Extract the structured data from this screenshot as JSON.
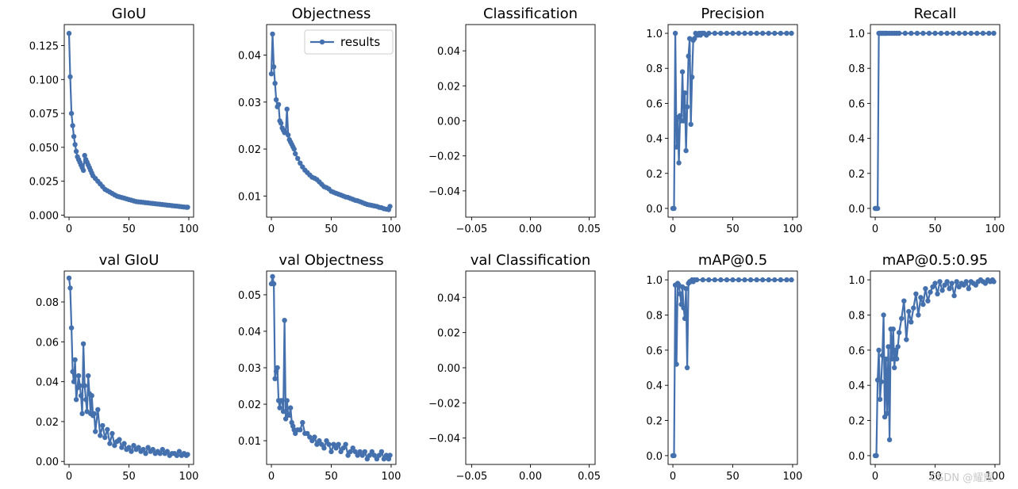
{
  "legend_label": "results",
  "watermark": "CSDN @耀耀",
  "series_color": "#4470ad",
  "chart_data": [
    {
      "type": "line",
      "title": "GIoU",
      "xlim": [
        -4,
        104
      ],
      "ylim": [
        -0.0015,
        0.1405
      ],
      "yticks": [
        "0.000",
        "0.025",
        "0.050",
        "0.075",
        "0.100",
        "0.125"
      ],
      "ytick_values": [
        0,
        0.025,
        0.05,
        0.075,
        0.1,
        0.125
      ],
      "xticks": [
        "0",
        "50",
        "100"
      ],
      "xtick_values": [
        0,
        50,
        100
      ],
      "x": [
        0,
        1,
        2,
        3,
        4,
        5,
        6,
        7,
        8,
        9,
        10,
        11,
        12,
        13,
        14,
        15,
        16,
        17,
        18,
        19,
        20,
        22,
        24,
        26,
        28,
        30,
        32,
        34,
        36,
        38,
        40,
        42,
        44,
        46,
        48,
        50,
        52,
        54,
        56,
        58,
        60,
        62,
        64,
        66,
        68,
        70,
        72,
        74,
        76,
        78,
        80,
        82,
        84,
        86,
        88,
        90,
        92,
        94,
        96,
        98,
        99
      ],
      "values": [
        0.134,
        0.102,
        0.075,
        0.066,
        0.058,
        0.052,
        0.047,
        0.043,
        0.041,
        0.039,
        0.037,
        0.035,
        0.033,
        0.044,
        0.041,
        0.039,
        0.037,
        0.035,
        0.033,
        0.031,
        0.029,
        0.027,
        0.025,
        0.023,
        0.021,
        0.019,
        0.018,
        0.017,
        0.016,
        0.015,
        0.014,
        0.0135,
        0.013,
        0.0125,
        0.012,
        0.0115,
        0.011,
        0.0105,
        0.01,
        0.0098,
        0.0096,
        0.0094,
        0.0092,
        0.009,
        0.0088,
        0.0086,
        0.0084,
        0.0082,
        0.008,
        0.0078,
        0.0076,
        0.0074,
        0.0072,
        0.007,
        0.0068,
        0.0066,
        0.0064,
        0.0062,
        0.006,
        0.0058,
        0.0058
      ]
    },
    {
      "type": "line",
      "title": "Objectness",
      "legend": true,
      "xlim": [
        -4,
        104
      ],
      "ylim": [
        0.0055,
        0.0465
      ],
      "yticks": [
        "0.01",
        "0.02",
        "0.03",
        "0.04"
      ],
      "ytick_values": [
        0.01,
        0.02,
        0.03,
        0.04
      ],
      "xticks": [
        "0",
        "50",
        "100"
      ],
      "xtick_values": [
        0,
        50,
        100
      ],
      "x": [
        0,
        1,
        2,
        3,
        4,
        5,
        6,
        7,
        8,
        9,
        10,
        11,
        12,
        13,
        14,
        15,
        16,
        17,
        18,
        19,
        20,
        22,
        24,
        26,
        28,
        30,
        32,
        34,
        36,
        38,
        40,
        42,
        44,
        46,
        48,
        50,
        52,
        54,
        56,
        58,
        60,
        62,
        64,
        66,
        68,
        70,
        72,
        74,
        76,
        78,
        80,
        82,
        84,
        86,
        88,
        90,
        92,
        94,
        96,
        98,
        99
      ],
      "values": [
        0.036,
        0.0445,
        0.0375,
        0.034,
        0.0305,
        0.029,
        0.0295,
        0.026,
        0.0255,
        0.0245,
        0.024,
        0.0235,
        0.0235,
        0.0285,
        0.023,
        0.022,
        0.0215,
        0.021,
        0.0205,
        0.02,
        0.019,
        0.018,
        0.017,
        0.0162,
        0.0155,
        0.015,
        0.0145,
        0.014,
        0.0138,
        0.0135,
        0.013,
        0.0125,
        0.012,
        0.0118,
        0.0115,
        0.011,
        0.0108,
        0.0106,
        0.0104,
        0.0102,
        0.01,
        0.0098,
        0.0097,
        0.0095,
        0.0093,
        0.0091,
        0.009,
        0.0088,
        0.0086,
        0.0084,
        0.0082,
        0.0081,
        0.008,
        0.0079,
        0.0078,
        0.0076,
        0.0075,
        0.0073,
        0.0072,
        0.0071,
        0.0078
      ]
    },
    {
      "type": "line",
      "title": "Classification",
      "empty": true,
      "xlim": [
        -0.055,
        0.055
      ],
      "ylim": [
        -0.055,
        0.055
      ],
      "yticks": [
        "−0.04",
        "−0.02",
        "0.00",
        "0.02",
        "0.04"
      ],
      "ytick_values": [
        -0.04,
        -0.02,
        0,
        0.02,
        0.04
      ],
      "xticks": [
        "−0.05",
        "0.00",
        "0.05"
      ],
      "xtick_values": [
        -0.05,
        0,
        0.05
      ],
      "x": [],
      "values": []
    },
    {
      "type": "line",
      "title": "Precision",
      "xlim": [
        -4,
        104
      ],
      "ylim": [
        -0.05,
        1.05
      ],
      "yticks": [
        "0.0",
        "0.2",
        "0.4",
        "0.6",
        "0.8",
        "1.0"
      ],
      "ytick_values": [
        0,
        0.2,
        0.4,
        0.6,
        0.8,
        1.0
      ],
      "xticks": [
        "0",
        "50",
        "100"
      ],
      "xtick_values": [
        0,
        50,
        100
      ],
      "x": [
        0,
        1,
        2,
        3,
        4,
        5,
        6,
        7,
        8,
        9,
        10,
        11,
        12,
        13,
        14,
        15,
        16,
        17,
        18,
        19,
        20,
        21,
        22,
        23,
        24,
        25,
        26,
        28,
        30,
        35,
        40,
        45,
        50,
        55,
        60,
        65,
        70,
        75,
        80,
        85,
        90,
        95,
        99
      ],
      "values": [
        0.0,
        0.0,
        1.0,
        0.35,
        0.52,
        0.26,
        0.53,
        0.5,
        0.78,
        0.5,
        0.66,
        0.33,
        0.58,
        0.87,
        0.97,
        0.48,
        0.75,
        0.96,
        0.97,
        1.0,
        0.99,
        0.99,
        1.0,
        0.99,
        1.0,
        1.0,
        1.0,
        0.99,
        1.0,
        1.0,
        1.0,
        1.0,
        1.0,
        1.0,
        1.0,
        1.0,
        1.0,
        1.0,
        1.0,
        1.0,
        1.0,
        1.0,
        1.0
      ]
    },
    {
      "type": "line",
      "title": "Recall",
      "xlim": [
        -4,
        104
      ],
      "ylim": [
        -0.05,
        1.05
      ],
      "yticks": [
        "0.0",
        "0.2",
        "0.4",
        "0.6",
        "0.8",
        "1.0"
      ],
      "ytick_values": [
        0,
        0.2,
        0.4,
        0.6,
        0.8,
        1.0
      ],
      "xticks": [
        "0",
        "50",
        "100"
      ],
      "xtick_values": [
        0,
        50,
        100
      ],
      "x": [
        0,
        1,
        2,
        3,
        4,
        5,
        6,
        7,
        8,
        9,
        10,
        12,
        14,
        16,
        18,
        20,
        25,
        30,
        35,
        40,
        45,
        50,
        55,
        60,
        65,
        70,
        75,
        80,
        85,
        90,
        95,
        99
      ],
      "values": [
        0.0,
        0.0,
        0.0,
        1.0,
        1.0,
        1.0,
        1.0,
        1.0,
        1.0,
        1.0,
        1.0,
        1.0,
        1.0,
        1.0,
        1.0,
        1.0,
        1.0,
        1.0,
        1.0,
        1.0,
        1.0,
        1.0,
        1.0,
        1.0,
        1.0,
        1.0,
        1.0,
        1.0,
        1.0,
        1.0,
        1.0,
        1.0
      ]
    },
    {
      "type": "line",
      "title": "val GIoU",
      "xlim": [
        -4,
        104
      ],
      "ylim": [
        -0.0015,
        0.0955
      ],
      "yticks": [
        "0.00",
        "0.02",
        "0.04",
        "0.06",
        "0.08"
      ],
      "ytick_values": [
        0,
        0.02,
        0.04,
        0.06,
        0.08
      ],
      "xticks": [
        "0",
        "50",
        "100"
      ],
      "xtick_values": [
        0,
        50,
        100
      ],
      "x": [
        0,
        1,
        2,
        3,
        4,
        5,
        6,
        7,
        8,
        9,
        10,
        11,
        12,
        13,
        14,
        15,
        16,
        17,
        18,
        19,
        20,
        21,
        22,
        24,
        26,
        28,
        30,
        32,
        34,
        36,
        38,
        40,
        42,
        44,
        46,
        48,
        50,
        52,
        54,
        56,
        58,
        60,
        62,
        64,
        66,
        68,
        70,
        72,
        74,
        76,
        78,
        80,
        82,
        84,
        86,
        88,
        90,
        92,
        94,
        96,
        98,
        99
      ],
      "values": [
        0.092,
        0.087,
        0.067,
        0.045,
        0.04,
        0.051,
        0.031,
        0.037,
        0.043,
        0.038,
        0.033,
        0.024,
        0.059,
        0.038,
        0.031,
        0.025,
        0.043,
        0.034,
        0.024,
        0.033,
        0.023,
        0.024,
        0.015,
        0.026,
        0.013,
        0.018,
        0.012,
        0.016,
        0.009,
        0.014,
        0.008,
        0.01,
        0.011,
        0.007,
        0.009,
        0.006,
        0.007,
        0.005,
        0.008,
        0.006,
        0.007,
        0.005,
        0.006,
        0.004,
        0.007,
        0.005,
        0.006,
        0.004,
        0.005,
        0.004,
        0.006,
        0.004,
        0.005,
        0.003,
        0.004,
        0.004,
        0.003,
        0.005,
        0.003,
        0.004,
        0.003,
        0.0035
      ]
    },
    {
      "type": "line",
      "title": "val Objectness",
      "xlim": [
        -4,
        104
      ],
      "ylim": [
        0.0035,
        0.0565
      ],
      "yticks": [
        "0.01",
        "0.02",
        "0.03",
        "0.04",
        "0.05"
      ],
      "ytick_values": [
        0.01,
        0.02,
        0.03,
        0.04,
        0.05
      ],
      "xticks": [
        "0",
        "50",
        "100"
      ],
      "xtick_values": [
        0,
        50,
        100
      ],
      "x": [
        0,
        1,
        2,
        3,
        4,
        5,
        6,
        7,
        8,
        9,
        10,
        11,
        12,
        13,
        14,
        15,
        16,
        17,
        18,
        19,
        20,
        22,
        24,
        26,
        28,
        30,
        32,
        34,
        36,
        38,
        40,
        42,
        44,
        46,
        48,
        50,
        52,
        54,
        56,
        58,
        60,
        62,
        64,
        66,
        68,
        70,
        72,
        74,
        76,
        78,
        80,
        82,
        84,
        86,
        88,
        90,
        92,
        94,
        96,
        98,
        99
      ],
      "values": [
        0.053,
        0.055,
        0.053,
        0.027,
        0.029,
        0.03,
        0.021,
        0.019,
        0.021,
        0.021,
        0.018,
        0.043,
        0.016,
        0.021,
        0.017,
        0.017,
        0.019,
        0.015,
        0.014,
        0.013,
        0.012,
        0.013,
        0.013,
        0.015,
        0.012,
        0.012,
        0.011,
        0.01,
        0.011,
        0.009,
        0.01,
        0.009,
        0.008,
        0.01,
        0.009,
        0.007,
        0.009,
        0.008,
        0.009,
        0.007,
        0.008,
        0.009,
        0.006,
        0.007,
        0.008,
        0.007,
        0.006,
        0.007,
        0.006,
        0.007,
        0.005,
        0.006,
        0.007,
        0.006,
        0.005,
        0.006,
        0.007,
        0.005,
        0.006,
        0.005,
        0.006
      ]
    },
    {
      "type": "line",
      "title": "val Classification",
      "empty": true,
      "xlim": [
        -0.055,
        0.055
      ],
      "ylim": [
        -0.055,
        0.055
      ],
      "yticks": [
        "−0.04",
        "−0.02",
        "0.00",
        "0.02",
        "0.04"
      ],
      "ytick_values": [
        -0.04,
        -0.02,
        0,
        0.02,
        0.04
      ],
      "xticks": [
        "−0.05",
        "0.00",
        "0.05"
      ],
      "xtick_values": [
        -0.05,
        0,
        0.05
      ],
      "x": [],
      "values": []
    },
    {
      "type": "line",
      "title": "mAP@0.5",
      "xlim": [
        -4,
        104
      ],
      "ylim": [
        -0.05,
        1.05
      ],
      "yticks": [
        "0.0",
        "0.2",
        "0.4",
        "0.6",
        "0.8",
        "1.0"
      ],
      "ytick_values": [
        0,
        0.2,
        0.4,
        0.6,
        0.8,
        1.0
      ],
      "xticks": [
        "0",
        "50",
        "100"
      ],
      "xtick_values": [
        0,
        50,
        100
      ],
      "x": [
        0,
        1,
        2,
        3,
        4,
        5,
        6,
        7,
        8,
        9,
        10,
        11,
        12,
        13,
        14,
        15,
        16,
        17,
        18,
        20,
        25,
        30,
        35,
        40,
        45,
        50,
        55,
        60,
        65,
        70,
        75,
        80,
        85,
        90,
        95,
        99
      ],
      "values": [
        0.0,
        0.0,
        0.97,
        0.52,
        0.98,
        0.97,
        0.92,
        0.86,
        0.96,
        0.84,
        0.78,
        0.95,
        0.5,
        0.98,
        0.99,
        0.99,
        1.0,
        0.99,
        1.0,
        1.0,
        1.0,
        1.0,
        1.0,
        1.0,
        1.0,
        1.0,
        1.0,
        1.0,
        1.0,
        1.0,
        1.0,
        1.0,
        1.0,
        1.0,
        1.0,
        1.0
      ]
    },
    {
      "type": "line",
      "title": "mAP@0.5:0.95",
      "xlim": [
        -4,
        104
      ],
      "ylim": [
        -0.05,
        1.05
      ],
      "yticks": [
        "0.0",
        "0.2",
        "0.4",
        "0.6",
        "0.8",
        "1.0"
      ],
      "ytick_values": [
        0,
        0.2,
        0.4,
        0.6,
        0.8,
        1.0
      ],
      "xticks": [
        "0",
        "50",
        "100"
      ],
      "xtick_values": [
        0,
        50,
        100
      ],
      "x": [
        0,
        1,
        2,
        3,
        4,
        5,
        6,
        7,
        8,
        9,
        10,
        11,
        12,
        13,
        14,
        15,
        16,
        17,
        18,
        19,
        20,
        22,
        24,
        26,
        28,
        30,
        32,
        34,
        36,
        38,
        40,
        42,
        44,
        46,
        48,
        50,
        52,
        54,
        56,
        58,
        60,
        62,
        64,
        66,
        68,
        70,
        72,
        74,
        76,
        78,
        80,
        82,
        84,
        86,
        88,
        90,
        92,
        94,
        96,
        98,
        99
      ],
      "values": [
        0.0,
        0.0,
        0.43,
        0.6,
        0.32,
        0.42,
        0.57,
        0.8,
        0.22,
        0.55,
        0.24,
        0.62,
        0.09,
        0.72,
        0.55,
        0.72,
        0.5,
        0.6,
        0.55,
        0.62,
        0.7,
        0.78,
        0.88,
        0.66,
        0.82,
        0.76,
        0.84,
        0.92,
        0.8,
        0.9,
        0.86,
        0.95,
        0.88,
        0.93,
        0.96,
        0.98,
        0.92,
        0.99,
        0.94,
        0.97,
        0.99,
        0.95,
        0.98,
        0.91,
        0.99,
        0.96,
        0.98,
        0.97,
        0.99,
        0.95,
        0.99,
        0.98,
        0.97,
        0.99,
        1.0,
        0.99,
        0.98,
        1.0,
        0.99,
        1.0,
        0.99
      ]
    }
  ]
}
